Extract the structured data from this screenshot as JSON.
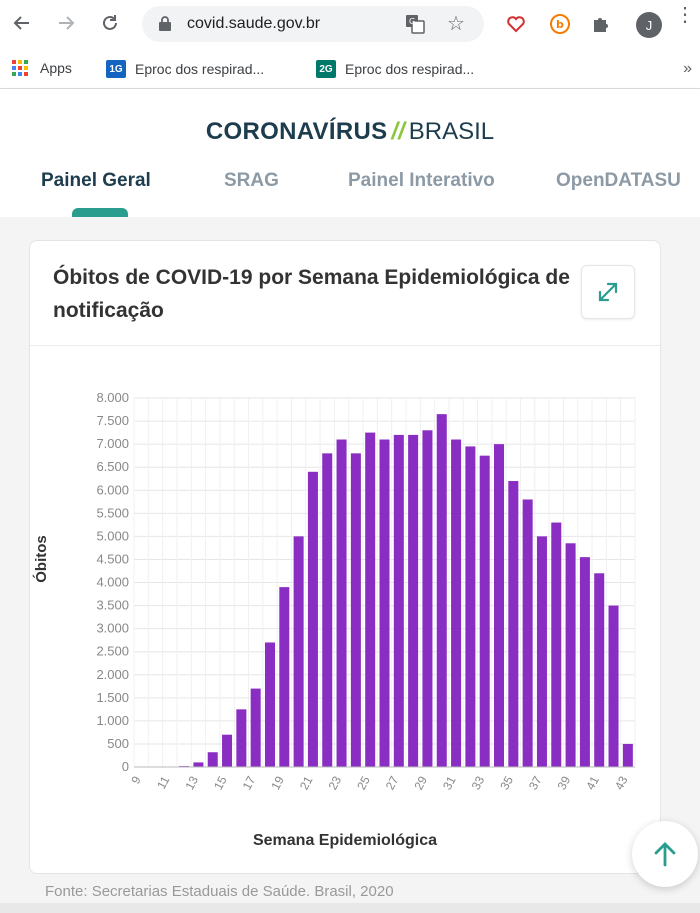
{
  "browser": {
    "url": "covid.saude.gov.br",
    "avatar_letter": "J",
    "bookmarks": [
      {
        "label": "Apps"
      },
      {
        "label": "Eproc dos respirad...",
        "badge": "1G",
        "badge_color": "#1565c0"
      },
      {
        "label": "Eproc dos respirad...",
        "badge": "2G",
        "badge_color": "#00796b"
      }
    ],
    "more_bookmarks": "»"
  },
  "site": {
    "brand_main": "CORONAVÍRUS",
    "brand_sep": "//",
    "brand_sub": "BRASIL",
    "tabs": [
      {
        "label": "Painel Geral",
        "active": true
      },
      {
        "label": "SRAG"
      },
      {
        "label": "Painel Interativo"
      },
      {
        "label": "OpenDATASU"
      }
    ]
  },
  "card": {
    "title": "Óbitos de COVID-19 por Semana Epidemiológica de notificação"
  },
  "chart_data": {
    "type": "bar",
    "title": "Óbitos de COVID-19 por Semana Epidemiológica de notificação",
    "xlabel": "Semana Epidemiológica",
    "ylabel": "Óbitos",
    "ylim": [
      0,
      8000
    ],
    "yticks": [
      0,
      500,
      1000,
      1500,
      2000,
      2500,
      3000,
      3500,
      4000,
      4500,
      5000,
      5500,
      6000,
      6500,
      7000,
      7500,
      8000
    ],
    "ytick_labels": [
      "0",
      "500",
      "1.000",
      "1.500",
      "2.000",
      "2.500",
      "3.000",
      "3.500",
      "4.000",
      "4.500",
      "5.000",
      "5.500",
      "6.000",
      "6.500",
      "7.000",
      "7.500",
      "8.000"
    ],
    "grid": true,
    "color": "#8a2ec3",
    "categories": [
      "9",
      "10",
      "11",
      "12",
      "13",
      "14",
      "15",
      "16",
      "17",
      "18",
      "19",
      "20",
      "21",
      "22",
      "23",
      "24",
      "25",
      "26",
      "27",
      "28",
      "29",
      "30",
      "31",
      "32",
      "33",
      "34",
      "35",
      "36",
      "37",
      "38",
      "39",
      "40",
      "41",
      "42",
      "43"
    ],
    "xtick_labels": [
      "9",
      "11",
      "13",
      "15",
      "17",
      "19",
      "21",
      "23",
      "25",
      "27",
      "29",
      "31",
      "33",
      "35",
      "37",
      "39",
      "41",
      "43"
    ],
    "values": [
      0,
      0,
      5,
      20,
      100,
      320,
      700,
      1250,
      1700,
      2700,
      3900,
      5000,
      6400,
      6800,
      7100,
      6800,
      7250,
      7100,
      7200,
      7200,
      7300,
      7650,
      7100,
      6950,
      6750,
      7000,
      6200,
      5800,
      5000,
      5300,
      4850,
      4550,
      4200,
      3500,
      500
    ]
  },
  "source": "Fonte: Secretarias Estaduais de Saúde. Brasil, 2020"
}
